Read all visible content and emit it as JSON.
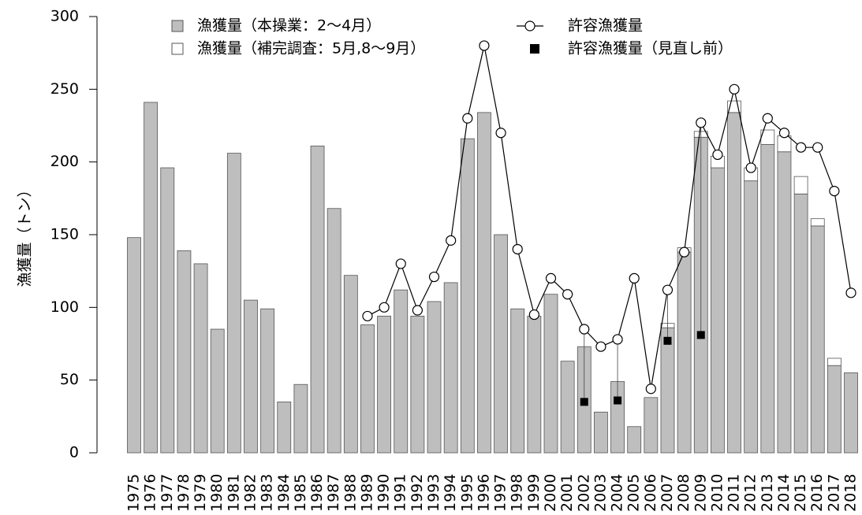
{
  "chart_data": {
    "type": "bar",
    "stacked": true,
    "y_label": "漁獲量（トン）",
    "categories": [
      "1975",
      "1976",
      "1977",
      "1978",
      "1979",
      "1980",
      "1981",
      "1982",
      "1983",
      "1984",
      "1985",
      "1986",
      "1987",
      "1988",
      "1989",
      "1990",
      "1991",
      "1992",
      "1993",
      "1994",
      "1995",
      "1996",
      "1997",
      "1998",
      "1999",
      "2000",
      "2001",
      "2002",
      "2003",
      "2004",
      "2005",
      "2006",
      "2007",
      "2008",
      "2009",
      "2010",
      "2011",
      "2012",
      "2013",
      "2014",
      "2015",
      "2016",
      "2017",
      "2018"
    ],
    "series": [
      {
        "name": "漁獲量（本操業：2～4月）",
        "type": "bar",
        "color": "#bebebe",
        "values": [
          148,
          241,
          196,
          139,
          130,
          85,
          206,
          105,
          99,
          35,
          47,
          211,
          168,
          122,
          88,
          94,
          112,
          94,
          104,
          117,
          216,
          234,
          150,
          99,
          94,
          109,
          63,
          73,
          28,
          49,
          18,
          38,
          86,
          138,
          217,
          196,
          234,
          187,
          212,
          207,
          178,
          156,
          60,
          55
        ]
      },
      {
        "name": "漁獲量（補完調査：5月,8～9月）",
        "type": "bar",
        "color": "#ffffff",
        "values": [
          null,
          null,
          null,
          null,
          null,
          null,
          null,
          null,
          null,
          null,
          null,
          null,
          null,
          null,
          null,
          null,
          null,
          null,
          null,
          null,
          null,
          null,
          null,
          null,
          null,
          null,
          null,
          null,
          null,
          null,
          null,
          null,
          3,
          3,
          4,
          8,
          8,
          9,
          10,
          11,
          12,
          5,
          5,
          null
        ]
      },
      {
        "name": "許容漁獲量",
        "type": "line",
        "color": "#000000",
        "values": [
          null,
          null,
          null,
          null,
          null,
          null,
          null,
          null,
          null,
          null,
          null,
          null,
          null,
          null,
          94,
          100,
          130,
          98,
          121,
          146,
          230,
          280,
          220,
          140,
          95,
          120,
          109,
          85,
          73,
          78,
          120,
          44,
          112,
          138,
          227,
          205,
          250,
          196,
          230,
          220,
          210,
          210,
          180,
          110
        ]
      },
      {
        "name": "許容漁獲量（見直し前）",
        "type": "scatter",
        "color": "#000000",
        "values": [
          null,
          null,
          null,
          null,
          null,
          null,
          null,
          null,
          null,
          null,
          null,
          null,
          null,
          null,
          null,
          null,
          null,
          null,
          null,
          null,
          null,
          null,
          null,
          null,
          null,
          null,
          null,
          35,
          null,
          36,
          null,
          null,
          77,
          null,
          81,
          null,
          null,
          null,
          null,
          null,
          null,
          null,
          null,
          null
        ]
      }
    ],
    "ylim": [
      0,
      300
    ],
    "yticks": [
      0,
      50,
      100,
      150,
      200,
      250,
      300
    ]
  }
}
